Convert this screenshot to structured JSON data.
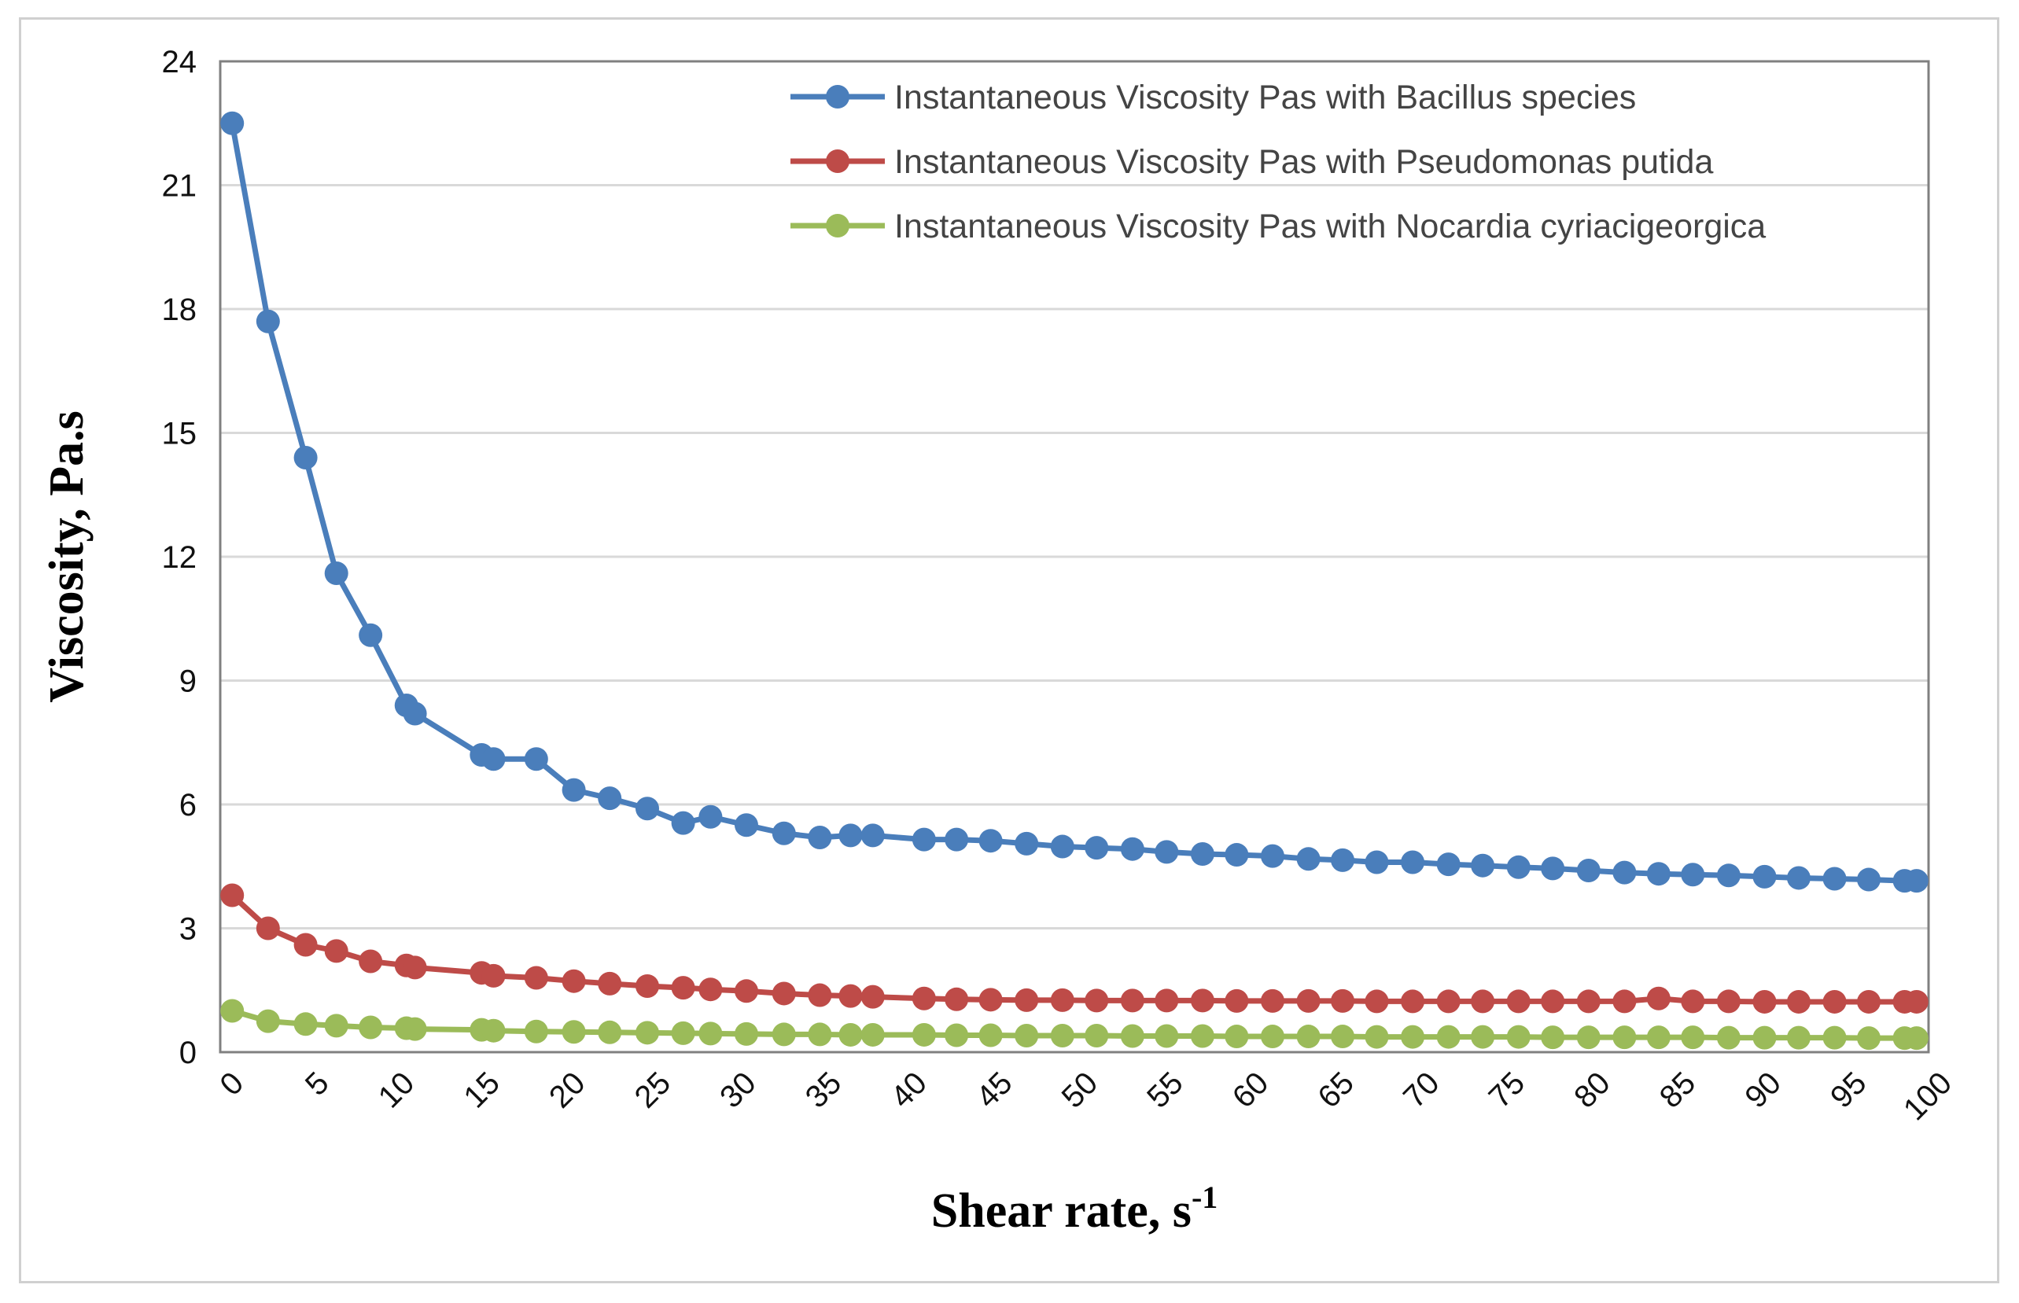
{
  "chart_data": {
    "type": "line",
    "title": "",
    "xlabel": "Shear rate, s",
    "xlabel_superscript": "-1",
    "ylabel": "Viscosity, Pa.s",
    "xlim": [
      0,
      100
    ],
    "ylim": [
      0,
      24
    ],
    "xticks": [
      0,
      5,
      10,
      15,
      20,
      25,
      30,
      35,
      40,
      45,
      50,
      55,
      60,
      65,
      70,
      75,
      80,
      85,
      90,
      95,
      100
    ],
    "yticks": [
      0,
      3,
      6,
      9,
      12,
      15,
      18,
      21,
      24
    ],
    "grid": true,
    "legend_position": "top-right",
    "x": [
      0.7,
      2.8,
      5.0,
      6.8,
      8.8,
      10.9,
      11.4,
      15.3,
      16.0,
      18.5,
      20.7,
      22.8,
      25.0,
      27.1,
      28.7,
      30.8,
      33.0,
      35.1,
      36.9,
      38.2,
      41.2,
      43.1,
      45.1,
      47.2,
      49.3,
      51.3,
      53.4,
      55.4,
      57.5,
      59.5,
      61.6,
      63.7,
      65.7,
      67.7,
      69.8,
      71.9,
      73.9,
      76.0,
      78.0,
      80.1,
      82.2,
      84.2,
      86.2,
      88.3,
      90.4,
      92.4,
      94.5,
      96.5,
      98.6,
      99.3
    ],
    "series": [
      {
        "name": "Instantaneous Viscosity Pas with Bacillus species",
        "color": "#4a7ebb",
        "values": [
          22.5,
          17.7,
          14.4,
          11.6,
          10.1,
          8.4,
          8.2,
          7.2,
          7.1,
          7.1,
          6.35,
          6.15,
          5.9,
          5.55,
          5.7,
          5.5,
          5.3,
          5.2,
          5.25,
          5.25,
          5.15,
          5.15,
          5.12,
          5.05,
          4.98,
          4.95,
          4.92,
          4.85,
          4.8,
          4.78,
          4.75,
          4.68,
          4.65,
          4.6,
          4.6,
          4.55,
          4.52,
          4.48,
          4.45,
          4.4,
          4.35,
          4.32,
          4.3,
          4.28,
          4.25,
          4.22,
          4.2,
          4.18,
          4.15,
          4.15
        ]
      },
      {
        "name": "Instantaneous Viscosity Pas with Pseudomonas putida",
        "color": "#be4b48",
        "values": [
          3.8,
          3.0,
          2.6,
          2.45,
          2.2,
          2.1,
          2.05,
          1.92,
          1.85,
          1.8,
          1.72,
          1.66,
          1.6,
          1.56,
          1.52,
          1.48,
          1.42,
          1.38,
          1.36,
          1.34,
          1.3,
          1.28,
          1.27,
          1.26,
          1.26,
          1.25,
          1.25,
          1.25,
          1.25,
          1.24,
          1.24,
          1.24,
          1.24,
          1.23,
          1.23,
          1.23,
          1.23,
          1.23,
          1.23,
          1.23,
          1.23,
          1.3,
          1.23,
          1.23,
          1.22,
          1.22,
          1.22,
          1.22,
          1.22,
          1.22
        ]
      },
      {
        "name": "Instantaneous Viscosity Pas with Nocardia cyriacigeorgica",
        "color": "#9bbb59",
        "values": [
          1.0,
          0.75,
          0.68,
          0.64,
          0.6,
          0.58,
          0.56,
          0.54,
          0.52,
          0.5,
          0.49,
          0.48,
          0.47,
          0.46,
          0.45,
          0.44,
          0.43,
          0.43,
          0.42,
          0.42,
          0.42,
          0.41,
          0.41,
          0.4,
          0.4,
          0.4,
          0.39,
          0.39,
          0.39,
          0.38,
          0.38,
          0.38,
          0.38,
          0.37,
          0.37,
          0.37,
          0.37,
          0.37,
          0.36,
          0.36,
          0.36,
          0.36,
          0.36,
          0.35,
          0.35,
          0.35,
          0.35,
          0.34,
          0.34,
          0.34
        ]
      }
    ]
  }
}
